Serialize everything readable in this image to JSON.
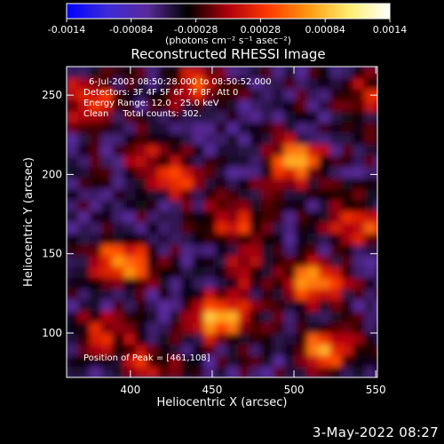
{
  "chart_data": {
    "type": "heatmap",
    "title": "Reconstructed RHESSI Image",
    "xlabel": "Heliocentric X (arcsec)",
    "ylabel": "Heliocentric Y (arcsec)",
    "xlim": [
      361,
      551
    ],
    "ylim": [
      72,
      268
    ],
    "x_ticks": [
      400,
      450,
      500,
      550
    ],
    "y_ticks": [
      100,
      150,
      200,
      250
    ],
    "colorbar": {
      "range": [
        -0.0014,
        0.0014
      ],
      "tick_values": [
        -0.0014,
        -0.00084,
        -0.00028,
        0.00028,
        0.00084,
        0.0014
      ],
      "tick_labels": [
        "-0.0014",
        "-0.00084",
        "-0.00028",
        "0.00028",
        "0.00084",
        "0.0014"
      ],
      "units": "(photons cm⁻² s⁻¹ asec⁻²)",
      "colors": [
        "#0000ff",
        "#3b2bd8",
        "#5a2a9a",
        "#000000",
        "#b0000c",
        "#ff3a00",
        "#ff9a10",
        "#ffee70",
        "#ffffff"
      ]
    },
    "info_lines": [
      "6-Jul-2003 08:50:28.000 to 08:50:52.000",
      "Detectors: 3F 4F 5F 6F 7F 8F, Att 0",
      "Energy Range: 12.0 - 25.0 keV",
      "Clean     Total counts: 302."
    ],
    "peak_label": "Position of Peak = [461,108]",
    "peak": [
      461,
      108
    ],
    "peak_value": 0.0014,
    "sources": [
      {
        "x": 395,
        "y": 145,
        "value": 0.0013
      },
      {
        "x": 455,
        "y": 110,
        "value": 0.0014
      },
      {
        "x": 512,
        "y": 132,
        "value": 0.00125
      },
      {
        "x": 518,
        "y": 90,
        "value": 0.0011
      },
      {
        "x": 500,
        "y": 208,
        "value": 0.0012
      },
      {
        "x": 465,
        "y": 170,
        "value": 0.00075
      },
      {
        "x": 430,
        "y": 198,
        "value": 0.0007
      },
      {
        "x": 375,
        "y": 248,
        "value": 0.0009
      },
      {
        "x": 540,
        "y": 168,
        "value": 0.0008
      },
      {
        "x": 440,
        "y": 255,
        "value": 0.0007
      },
      {
        "x": 384,
        "y": 98,
        "value": 0.0006
      },
      {
        "x": 408,
        "y": 78,
        "value": 0.00055
      },
      {
        "x": 545,
        "y": 250,
        "value": 0.0006
      },
      {
        "x": 470,
        "y": 140,
        "value": 0.0005
      },
      {
        "x": 410,
        "y": 215,
        "value": 0.0004
      }
    ]
  },
  "footer": {
    "timestamp": "3-May-2022 08:27"
  }
}
